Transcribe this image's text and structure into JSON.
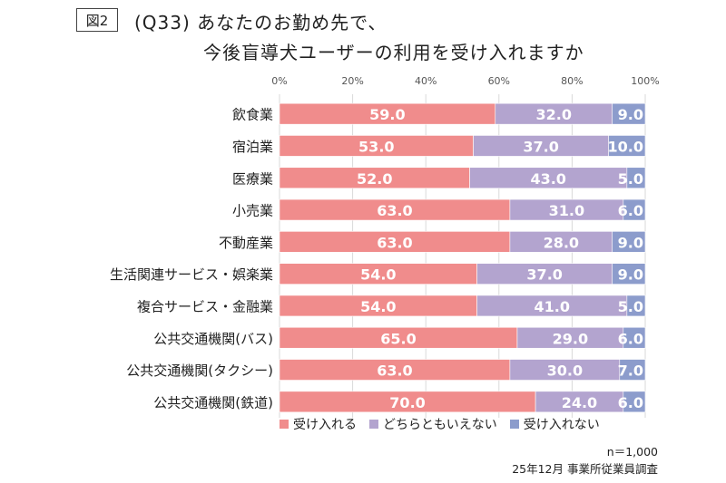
{
  "figure_label": "図2",
  "title": {
    "line1": "(Q33) あなたのお勤め先で、",
    "line2": "今後盲導犬ユーザーの利用を受け入れますか"
  },
  "colors": {
    "accept": "#f08c8c",
    "neutral": "#b3a4cf",
    "reject": "#8c9ccc",
    "grid": "#d9d9d9",
    "text": "#222222"
  },
  "chart_data": {
    "type": "bar",
    "orientation": "horizontal",
    "stacked": true,
    "title": "(Q33) あなたのお勤め先で、今後盲導犬ユーザーの利用を受け入れますか",
    "x_ticks": [
      "0%",
      "20%",
      "40%",
      "60%",
      "80%",
      "100%"
    ],
    "xlim": [
      0,
      100
    ],
    "categories": [
      "飲食業",
      "宿泊業",
      "医療業",
      "小売業",
      "不動産業",
      "生活関連サービス・娯楽業",
      "複合サービス・金融業",
      "公共交通機関(バス)",
      "公共交通機関(タクシー)",
      "公共交通機関(鉄道)"
    ],
    "series": [
      {
        "name": "受け入れる",
        "color": "#f08c8c",
        "values": [
          59.0,
          53.0,
          52.0,
          63.0,
          63.0,
          54.0,
          54.0,
          65.0,
          63.0,
          70.0
        ],
        "labels": [
          "59.0",
          "53.0",
          "52.0",
          "63.0",
          "63.0",
          "54.0",
          "54.0",
          "65.0",
          "63.0",
          "70.0"
        ]
      },
      {
        "name": "どちらともいえない",
        "color": "#b3a4cf",
        "values": [
          32.0,
          37.0,
          43.0,
          31.0,
          28.0,
          37.0,
          41.0,
          29.0,
          30.0,
          24.0
        ],
        "labels": [
          "32.0",
          "37.0",
          "43.0",
          "31.0",
          "28.0",
          "37.0",
          "41.0",
          "29.0",
          "30.0",
          "24.0"
        ]
      },
      {
        "name": "受け入れない",
        "color": "#8c9ccc",
        "values": [
          9.0,
          10.0,
          5.0,
          6.0,
          9.0,
          9.0,
          5.0,
          6.0,
          7.0,
          6.0
        ],
        "labels": [
          "9.0",
          "10.0",
          "5.0",
          "6.0",
          "9.0",
          "9.0",
          "5.0",
          "6.0",
          "7.0",
          "6.0"
        ]
      }
    ]
  },
  "legend": [
    {
      "label": "受け入れる",
      "color": "#f08c8c"
    },
    {
      "label": "どちらともいえない",
      "color": "#b3a4cf"
    },
    {
      "label": "受け入れない",
      "color": "#8c9ccc"
    }
  ],
  "notes": {
    "sample": "n＝1,000",
    "source": "25年12月 事業所従業員調査"
  }
}
